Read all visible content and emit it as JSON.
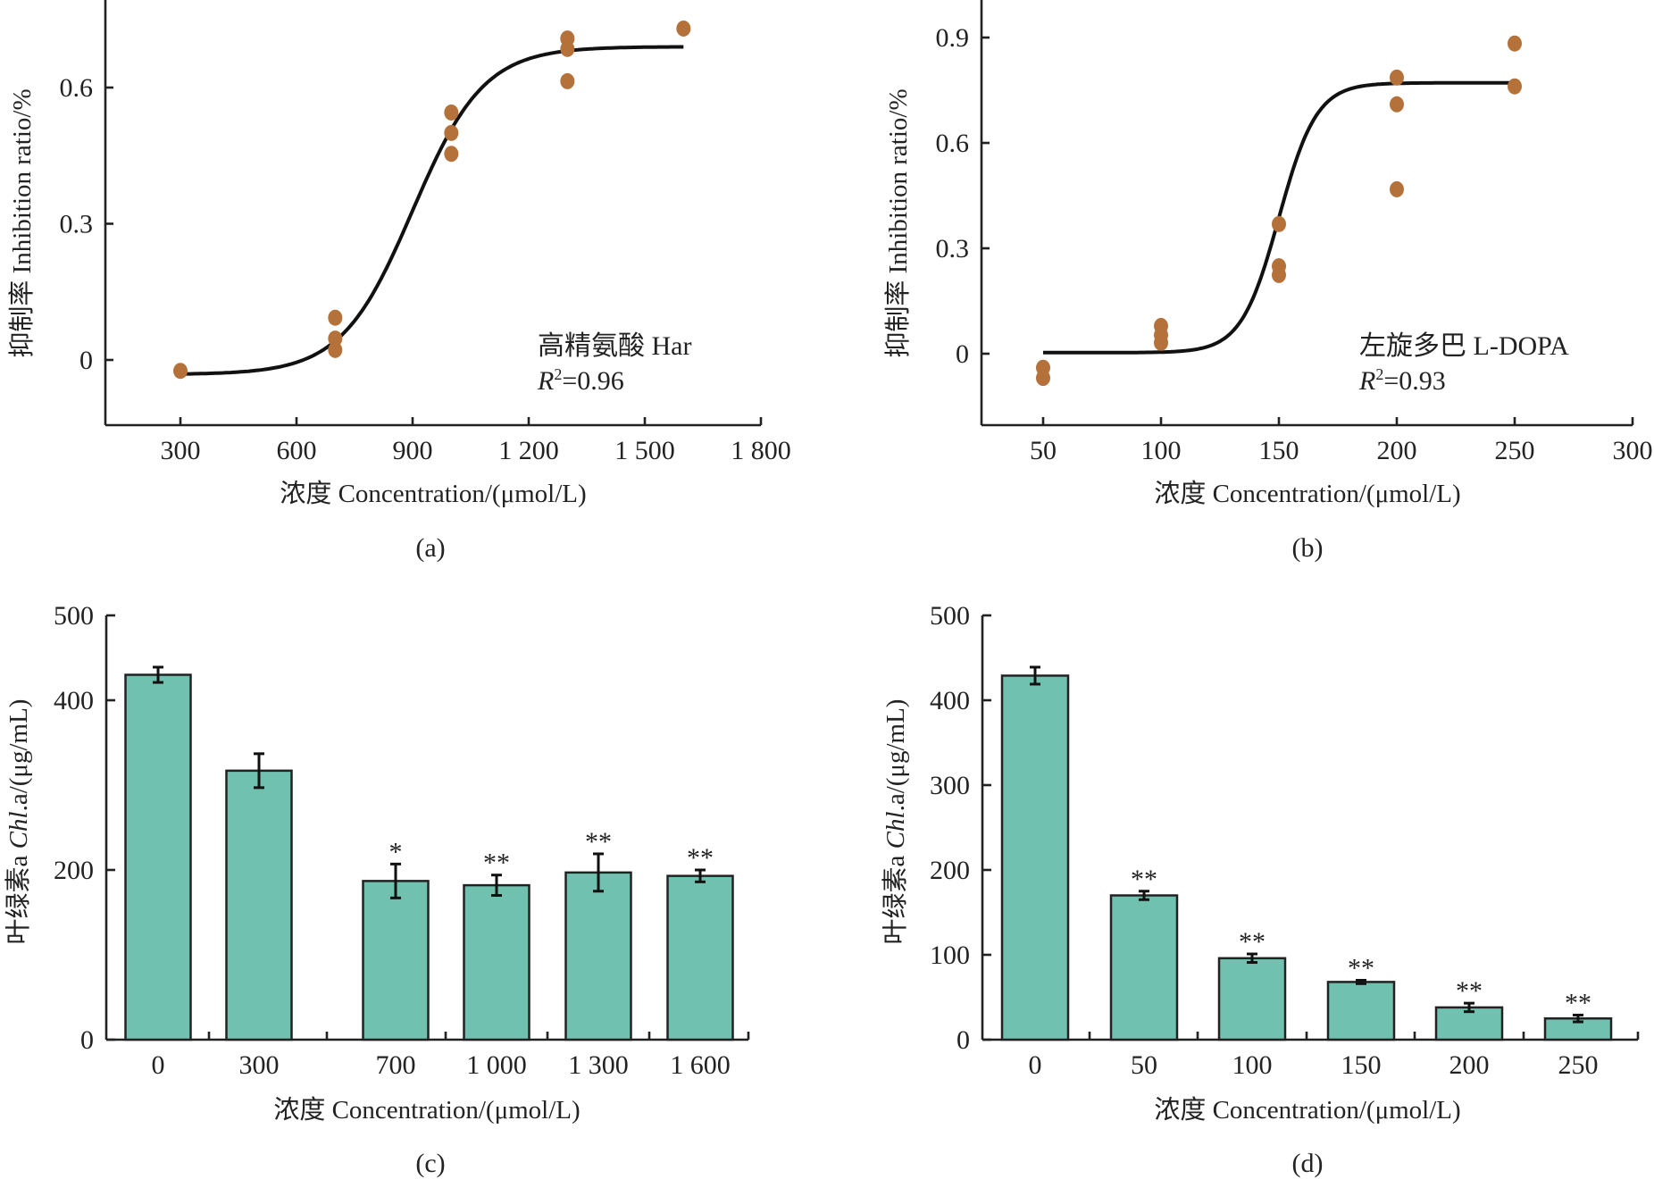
{
  "chart_data": [
    {
      "id": "a",
      "type": "scatter",
      "panel_label": "(a)",
      "title": "",
      "xlabel": "浓度 Concentration/(μmol/L)",
      "ylabel": "抑制率 Inhibition ratio/%",
      "xlim": [
        130,
        1800
      ],
      "ylim": [
        -0.17,
        0.7
      ],
      "xticks": [
        300,
        600,
        900,
        1200,
        1500,
        1800
      ],
      "xtick_labels": [
        "300",
        "600",
        "900",
        "1 200",
        "1 500",
        "1 800"
      ],
      "yticks": [
        0,
        0.3,
        0.6
      ],
      "ytick_labels": [
        "0",
        "0.3",
        "0.6"
      ],
      "grid": false,
      "point_color": "#b5713a",
      "annotation": {
        "compound": "高精氨酸 Har",
        "r2_label": "R",
        "r2_sup": "2",
        "r2_value": "=0.96"
      },
      "points": [
        {
          "x": 300,
          "y": -0.024
        },
        {
          "x": 700,
          "y": 0.093
        },
        {
          "x": 700,
          "y": 0.047
        },
        {
          "x": 700,
          "y": 0.022
        },
        {
          "x": 1000,
          "y": 0.545
        },
        {
          "x": 1000,
          "y": 0.5
        },
        {
          "x": 1000,
          "y": 0.454
        },
        {
          "x": 1300,
          "y": 0.708
        },
        {
          "x": 1300,
          "y": 0.685
        },
        {
          "x": 1300,
          "y": 0.614
        },
        {
          "x": 1600,
          "y": 0.73
        }
      ],
      "fit": {
        "model": "sigmoid",
        "bottom": -0.032,
        "top": 0.69,
        "x50": 900,
        "slope": 92,
        "x_range": [
          300,
          1600
        ]
      }
    },
    {
      "id": "b",
      "type": "scatter",
      "panel_label": "(b)",
      "title": "",
      "xlabel": "浓度 Concentration/(μmol/L)",
      "ylabel": "抑制率 Inhibition ratio/%",
      "xlim": [
        25,
        300
      ],
      "ylim": [
        -0.2,
        1.0
      ],
      "xticks": [
        50,
        100,
        150,
        200,
        250,
        300
      ],
      "xtick_labels": [
        "50",
        "100",
        "150",
        "200",
        "250",
        "300"
      ],
      "yticks": [
        0,
        0.3,
        0.6,
        0.9
      ],
      "ytick_labels": [
        "0",
        "0.3",
        "0.6",
        "0.9"
      ],
      "grid": false,
      "point_color": "#b5713a",
      "annotation": {
        "compound": "左旋多巴 L-DOPA",
        "r2_label": "R",
        "r2_sup": "2",
        "r2_value": "=0.93"
      },
      "points": [
        {
          "x": 50,
          "y": -0.04
        },
        {
          "x": 50,
          "y": -0.069
        },
        {
          "x": 100,
          "y": 0.079
        },
        {
          "x": 100,
          "y": 0.053
        },
        {
          "x": 100,
          "y": 0.031
        },
        {
          "x": 150,
          "y": 0.369
        },
        {
          "x": 150,
          "y": 0.249
        },
        {
          "x": 150,
          "y": 0.224
        },
        {
          "x": 200,
          "y": 0.786
        },
        {
          "x": 200,
          "y": 0.71
        },
        {
          "x": 200,
          "y": 0.468
        },
        {
          "x": 250,
          "y": 0.883
        },
        {
          "x": 250,
          "y": 0.761
        }
      ],
      "fit": {
        "model": "sigmoid",
        "bottom": 0.003,
        "top": 0.771,
        "x50": 150,
        "slope": 8,
        "x_range": [
          50,
          250
        ]
      }
    },
    {
      "id": "c",
      "type": "bar",
      "panel_label": "(c)",
      "title": "",
      "xlabel": "浓度 Concentration/(μmol/L)",
      "ylabel_prefix": "叶绿素a ",
      "ylabel_italic": "Chl",
      "ylabel_suffix": ".a/(μg/mL)",
      "ylim": [
        0,
        500
      ],
      "yticks": [
        0,
        200,
        400,
        500
      ],
      "ytick_labels": [
        "0",
        "200",
        "400",
        "500"
      ],
      "grid": false,
      "bar_color": "#70c1af",
      "categories": [
        "0",
        "300",
        "700",
        "1 000",
        "1 300",
        "1 600"
      ],
      "values": [
        430,
        317,
        187,
        182,
        197,
        193
      ],
      "errors": [
        9,
        20,
        20,
        12,
        22,
        7
      ],
      "significance": [
        "",
        "",
        "*",
        "**",
        "**",
        "**"
      ]
    },
    {
      "id": "d",
      "type": "bar",
      "panel_label": "(d)",
      "title": "",
      "xlabel": "浓度 Concentration/(μmol/L)",
      "ylabel_prefix": "叶绿素a ",
      "ylabel_italic": "Chl",
      "ylabel_suffix": ".a/(μg/mL)",
      "ylim": [
        0,
        500
      ],
      "yticks": [
        0,
        100,
        200,
        300,
        400,
        500
      ],
      "ytick_labels": [
        "0",
        "100",
        "200",
        "300",
        "400",
        "500"
      ],
      "grid": false,
      "bar_color": "#70c1af",
      "categories": [
        "0",
        "50",
        "100",
        "150",
        "200",
        "250"
      ],
      "values": [
        429,
        170,
        96,
        68,
        38,
        25
      ],
      "errors": [
        10,
        5,
        5,
        2,
        5,
        4
      ],
      "significance": [
        "",
        "**",
        "**",
        "**",
        "**",
        "**"
      ]
    }
  ]
}
